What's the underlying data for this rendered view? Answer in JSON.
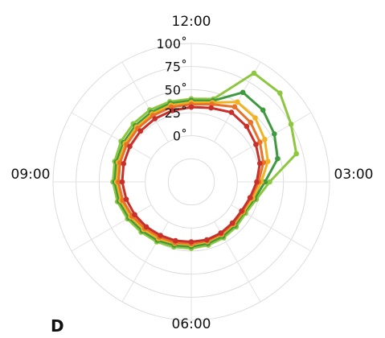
{
  "chart_data": {
    "type": "line",
    "subtype": "polar",
    "panel_label": "D",
    "angular_ticks": [
      "12:00",
      "03:00",
      "06:00",
      "09:00"
    ],
    "radial_ticks": [
      {
        "value": 0,
        "label": "0˚"
      },
      {
        "value": 25,
        "label": "25˚"
      },
      {
        "value": 50,
        "label": "50˚"
      },
      {
        "value": 75,
        "label": "75˚"
      },
      {
        "value": 100,
        "label": "100˚"
      }
    ],
    "r_range": [
      -50,
      100
    ],
    "grid": true,
    "angle_unit": "hours (12-hour clock face)",
    "series": [
      {
        "color": "#8dc63f",
        "points": [
          [
            0,
            40
          ],
          [
            0.5,
            43
          ],
          [
            1,
            86
          ],
          [
            1.5,
            86
          ],
          [
            2,
            75
          ],
          [
            2.5,
            68
          ],
          [
            3,
            35
          ],
          [
            3.5,
            23
          ],
          [
            4,
            18
          ],
          [
            4.5,
            19
          ],
          [
            5,
            20
          ],
          [
            5.5,
            21
          ],
          [
            6,
            22
          ],
          [
            6.5,
            23
          ],
          [
            7,
            25
          ],
          [
            7.5,
            27
          ],
          [
            8,
            30
          ],
          [
            8.5,
            33
          ],
          [
            9,
            35
          ],
          [
            9.5,
            36
          ],
          [
            10,
            38
          ],
          [
            10.5,
            39
          ],
          [
            11,
            40
          ],
          [
            11.5,
            40
          ],
          [
            0,
            40
          ]
        ]
      },
      {
        "color": "#3f9a3f",
        "points": [
          [
            0,
            38
          ],
          [
            0.5,
            41
          ],
          [
            1,
            62
          ],
          [
            1.5,
            60
          ],
          [
            2,
            54
          ],
          [
            2.5,
            47
          ],
          [
            3,
            30
          ],
          [
            3.5,
            21
          ],
          [
            4,
            16
          ],
          [
            4.5,
            17
          ],
          [
            5,
            18
          ],
          [
            5.5,
            19
          ],
          [
            6,
            20
          ],
          [
            6.5,
            21
          ],
          [
            7,
            23
          ],
          [
            7.5,
            25
          ],
          [
            8,
            28
          ],
          [
            8.5,
            31
          ],
          [
            9,
            33
          ],
          [
            9.5,
            34
          ],
          [
            10,
            35
          ],
          [
            10.5,
            36
          ],
          [
            11,
            37
          ],
          [
            11.5,
            38
          ],
          [
            0,
            38
          ]
        ]
      },
      {
        "color": "#f0b323",
        "points": [
          [
            0,
            36
          ],
          [
            0.5,
            39
          ],
          [
            1,
            50
          ],
          [
            1.5,
            48
          ],
          [
            2,
            42
          ],
          [
            2.5,
            36
          ],
          [
            3,
            26
          ],
          [
            3.5,
            19
          ],
          [
            4,
            15
          ],
          [
            4.5,
            15
          ],
          [
            5,
            16
          ],
          [
            5.5,
            17
          ],
          [
            6,
            18
          ],
          [
            6.5,
            19
          ],
          [
            7,
            21
          ],
          [
            7.5,
            23
          ],
          [
            8,
            26
          ],
          [
            8.5,
            29
          ],
          [
            9,
            31
          ],
          [
            9.5,
            32
          ],
          [
            10,
            33
          ],
          [
            10.5,
            34
          ],
          [
            11,
            35
          ],
          [
            11.5,
            36
          ],
          [
            0,
            36
          ]
        ]
      },
      {
        "color": "#e8712b",
        "points": [
          [
            0,
            34
          ],
          [
            0.5,
            37
          ],
          [
            1,
            44
          ],
          [
            1.5,
            41
          ],
          [
            2,
            36
          ],
          [
            2.5,
            31
          ],
          [
            3,
            23
          ],
          [
            3.5,
            17
          ],
          [
            4,
            14
          ],
          [
            4.5,
            14
          ],
          [
            5,
            15
          ],
          [
            5.5,
            16
          ],
          [
            6,
            17
          ],
          [
            6.5,
            18
          ],
          [
            7,
            19
          ],
          [
            7.5,
            21
          ],
          [
            8,
            24
          ],
          [
            8.5,
            27
          ],
          [
            9,
            29
          ],
          [
            9.5,
            30
          ],
          [
            10,
            31
          ],
          [
            10.5,
            32
          ],
          [
            11,
            33
          ],
          [
            11.5,
            34
          ],
          [
            0,
            34
          ]
        ]
      },
      {
        "color": "#c8312b",
        "points": [
          [
            0,
            31
          ],
          [
            0.5,
            33
          ],
          [
            1,
            37
          ],
          [
            1.5,
            35
          ],
          [
            2,
            31
          ],
          [
            2.5,
            27
          ],
          [
            3,
            21
          ],
          [
            3.5,
            16
          ],
          [
            4,
            13
          ],
          [
            4.5,
            13
          ],
          [
            5,
            14
          ],
          [
            5.5,
            15
          ],
          [
            6,
            15
          ],
          [
            6.5,
            16
          ],
          [
            7,
            17
          ],
          [
            7.5,
            19
          ],
          [
            8,
            21
          ],
          [
            8.5,
            23
          ],
          [
            9,
            25
          ],
          [
            9.5,
            26
          ],
          [
            10,
            27
          ],
          [
            10.5,
            28
          ],
          [
            11,
            29
          ],
          [
            11.5,
            30
          ],
          [
            0,
            31
          ]
        ]
      }
    ]
  }
}
